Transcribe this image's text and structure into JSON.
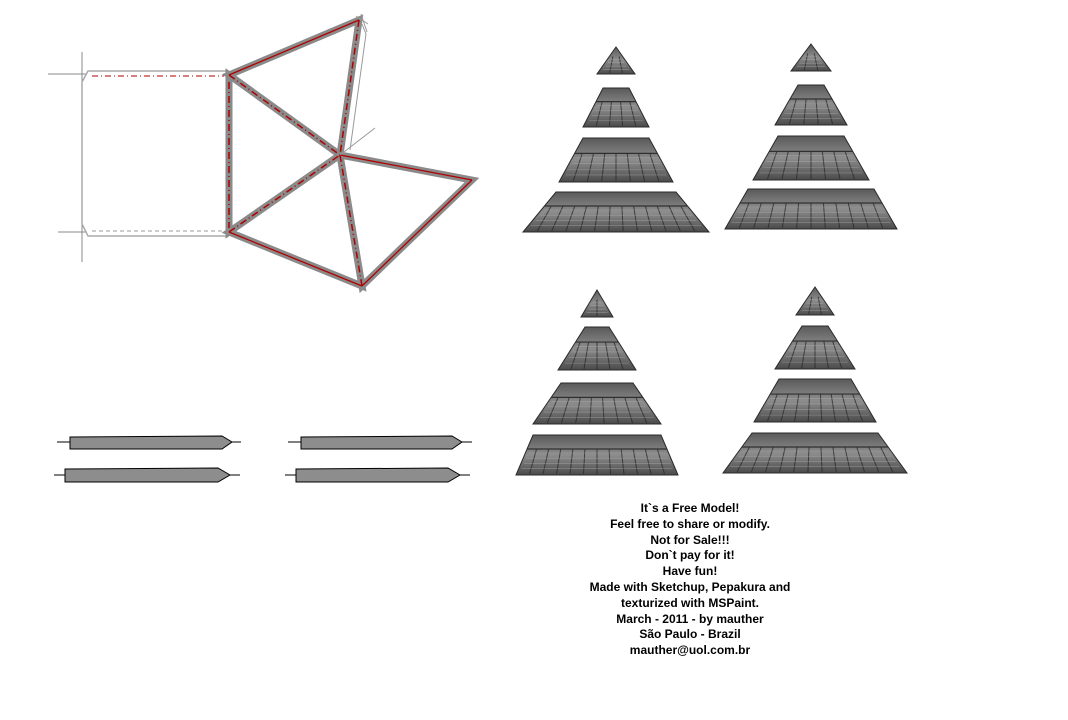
{
  "colors": {
    "background": "#ffffff",
    "fold_line": "#b00000",
    "tab_fill": "#8a8a8a",
    "outline": "#999999",
    "shingle_dark": "#3f3f3f",
    "shingle_light": "#8c8c8c"
  },
  "credits": {
    "lines": [
      "It`s a Free Model!",
      "Feel free to share or modify.",
      "Not for Sale!!!",
      "Don`t pay for it!",
      "Have fun!",
      "Made with Sketchup, Pepakura and",
      "texturized with MSPaint.",
      "March - 2011 -  by mauther",
      "São Paulo - Brazil",
      "mauther@uol.com.br"
    ]
  }
}
